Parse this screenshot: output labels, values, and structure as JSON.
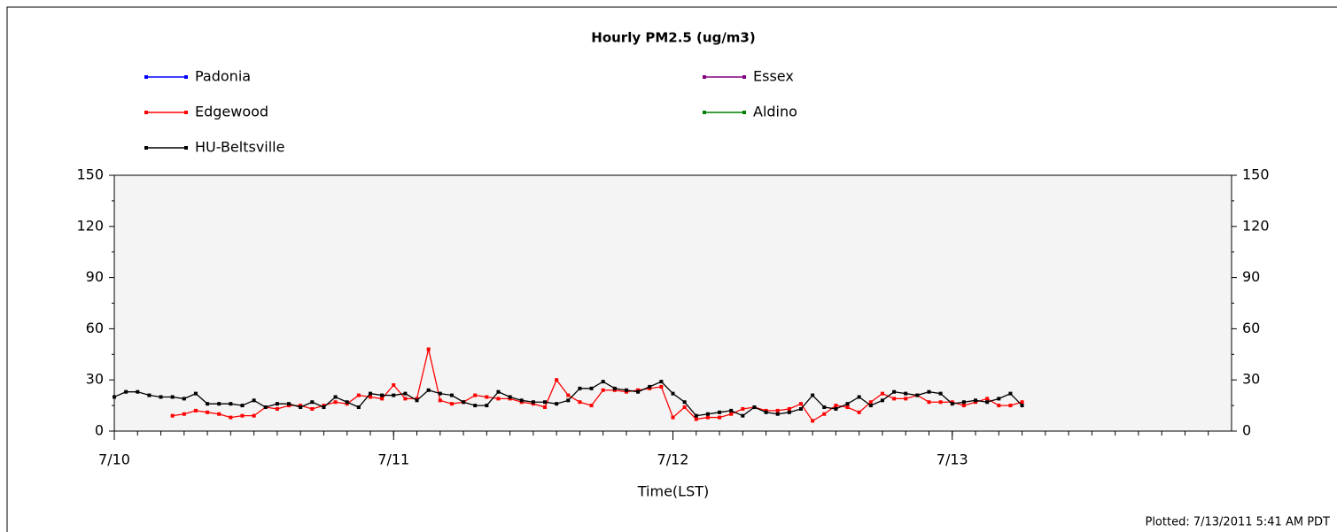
{
  "chart_data": {
    "type": "line",
    "title": "Hourly PM2.5 (ug/m3)",
    "x_label": "Time(LST)",
    "note": "Plotted: 7/13/2011 5:41 AM PDT",
    "x": [
      0,
      1,
      2,
      3,
      4,
      5,
      6,
      7,
      8,
      9,
      10,
      11,
      12,
      13,
      14,
      15,
      16,
      17,
      18,
      19,
      20,
      21,
      22,
      23,
      24,
      25,
      26,
      27,
      28,
      29,
      30,
      31,
      32,
      33,
      34,
      35,
      36,
      37,
      38,
      39,
      40,
      41,
      42,
      43,
      44,
      45,
      46,
      47,
      48,
      49,
      50,
      51,
      52,
      53,
      54,
      55,
      56,
      57,
      58,
      59,
      60,
      61,
      62,
      63,
      64,
      65,
      66,
      67,
      68,
      69,
      70,
      71,
      72,
      73,
      74,
      75,
      76,
      77,
      78
    ],
    "xlim": [
      0,
      96
    ],
    "xticks": [
      {
        "value": 0,
        "label": "7/10"
      },
      {
        "value": 24,
        "label": "7/11"
      },
      {
        "value": 48,
        "label": "7/12"
      },
      {
        "value": 72,
        "label": "7/13"
      }
    ],
    "ylim": [
      0,
      150
    ],
    "yticks": [
      0,
      30,
      60,
      90,
      120,
      150
    ],
    "series": [
      {
        "name": "Padonia",
        "color": "#0000ff",
        "values": [
          null,
          null,
          null,
          null,
          null,
          null,
          null,
          null,
          null,
          null,
          null,
          null,
          null,
          null,
          null,
          null,
          null,
          null,
          null,
          null,
          null,
          null,
          null,
          null,
          null,
          null,
          null,
          null,
          null,
          null,
          null,
          null,
          null,
          null,
          null,
          null,
          null,
          null,
          null,
          null,
          null,
          null,
          null,
          null,
          null,
          null,
          null,
          null,
          null,
          null,
          null,
          null,
          null,
          null,
          null,
          null,
          null,
          null,
          null,
          null,
          null,
          null,
          null,
          null,
          null,
          null,
          null,
          null,
          null,
          null,
          null,
          null,
          null,
          null,
          null,
          null,
          null,
          null,
          null
        ]
      },
      {
        "name": "Essex",
        "color": "#800080",
        "values": [
          null,
          null,
          null,
          null,
          null,
          null,
          null,
          null,
          null,
          null,
          null,
          null,
          null,
          null,
          null,
          null,
          null,
          null,
          null,
          null,
          null,
          null,
          null,
          null,
          null,
          null,
          null,
          null,
          null,
          null,
          null,
          null,
          null,
          null,
          null,
          null,
          null,
          null,
          null,
          null,
          null,
          null,
          null,
          null,
          null,
          null,
          null,
          null,
          null,
          null,
          null,
          null,
          null,
          null,
          null,
          null,
          null,
          null,
          null,
          null,
          null,
          null,
          null,
          null,
          null,
          null,
          null,
          null,
          null,
          null,
          null,
          null,
          null,
          null,
          null,
          null,
          null,
          null,
          null
        ]
      },
      {
        "name": "Edgewood",
        "color": "#ff0000",
        "values": [
          null,
          null,
          null,
          null,
          null,
          9,
          10,
          12,
          11,
          10,
          8,
          9,
          9,
          14,
          13,
          15,
          15,
          13,
          15,
          17,
          16,
          21,
          20,
          19,
          27,
          19,
          19,
          48,
          18,
          16,
          17,
          21,
          20,
          19,
          19,
          17,
          16,
          14,
          30,
          21,
          17,
          15,
          24,
          24,
          23,
          24,
          25,
          26,
          8,
          14,
          7,
          8,
          8,
          10,
          13,
          14,
          12,
          12,
          13,
          16,
          6,
          10,
          15,
          14,
          11,
          17,
          22,
          19,
          19,
          21,
          17,
          17,
          17,
          15,
          17,
          19,
          15,
          15,
          17
        ]
      },
      {
        "name": "Aldino",
        "color": "#008000",
        "values": [
          null,
          null,
          null,
          null,
          null,
          null,
          null,
          null,
          null,
          null,
          null,
          null,
          null,
          null,
          null,
          null,
          null,
          null,
          null,
          null,
          null,
          null,
          null,
          null,
          null,
          null,
          null,
          null,
          null,
          null,
          null,
          null,
          null,
          null,
          null,
          null,
          null,
          null,
          null,
          null,
          null,
          null,
          null,
          null,
          null,
          null,
          null,
          null,
          null,
          null,
          null,
          null,
          null,
          null,
          null,
          null,
          null,
          null,
          null,
          null,
          null,
          null,
          null,
          null,
          null,
          null,
          null,
          null,
          null,
          null,
          null,
          null,
          null,
          null,
          null,
          null,
          null,
          null,
          null
        ]
      },
      {
        "name": "HU-Beltsville",
        "color": "#000000",
        "values": [
          20,
          23,
          23,
          21,
          20,
          20,
          19,
          22,
          16,
          16,
          16,
          15,
          18,
          14,
          16,
          16,
          14,
          17,
          14,
          20,
          17,
          14,
          22,
          21,
          21,
          22,
          18,
          24,
          22,
          21,
          17,
          15,
          15,
          23,
          20,
          18,
          17,
          17,
          16,
          18,
          25,
          25,
          29,
          25,
          24,
          23,
          26,
          29,
          22,
          17,
          9,
          10,
          11,
          12,
          9,
          14,
          11,
          10,
          11,
          13,
          21,
          14,
          13,
          16,
          20,
          15,
          18,
          23,
          22,
          21,
          23,
          22,
          16,
          17,
          18,
          17,
          19,
          22,
          15
        ]
      }
    ]
  }
}
